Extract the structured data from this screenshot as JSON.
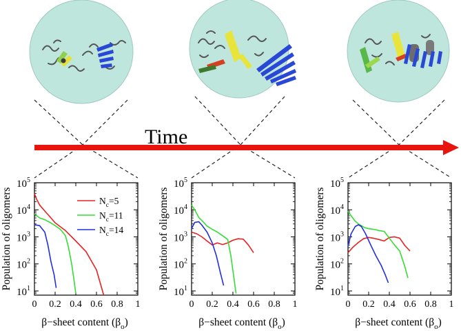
{
  "time_label": "Time",
  "colors": {
    "bubble_fill": "#bfe6dc",
    "bubble_stroke": "#9cc9bf",
    "arrow": "#e8150e",
    "series_red": "#e82020",
    "series_green": "#33dd33",
    "series_blue": "#1f2fe0"
  },
  "snapshots": [
    {
      "icons": [
        "coil-strands",
        "green-yellow-sheet",
        "blue-beta-sheet"
      ]
    },
    {
      "icons": [
        "coil-strands",
        "yellow-red-green-sheet",
        "large-blue-beta-sheet"
      ]
    },
    {
      "icons": [
        "coil-strands",
        "green-yellow-sheet",
        "grey-barrel",
        "blue-beta-sheet"
      ]
    }
  ],
  "chart_data": [
    {
      "type": "line",
      "ylabel": "Population of oligomers",
      "xlabel_pre": "β−sheet content (β",
      "xlabel_sub": "o",
      "xlabel_post": ")",
      "xlim": [
        0,
        1
      ],
      "ylim": [
        7,
        100000
      ],
      "yscale": "log",
      "x_ticks": [
        "0",
        "0.2",
        "0.4",
        "0.6",
        "0.8",
        "1"
      ],
      "x_tick_values": [
        0,
        0.2,
        0.4,
        0.6,
        0.8,
        1
      ],
      "y_tick_exponents": [
        "5",
        "4",
        "3",
        "2",
        "1"
      ],
      "y_tick_values": [
        100000,
        10000,
        1000,
        100,
        10
      ],
      "legend_placement": "top-right",
      "series": [
        {
          "name_main": "N",
          "name_sub": "c",
          "name_tail": "=5",
          "color": "#e82020",
          "points": [
            [
              0,
              40000
            ],
            [
              0.02,
              25000
            ],
            [
              0.05,
              15000
            ],
            [
              0.1,
              9000
            ],
            [
              0.15,
              5500
            ],
            [
              0.2,
              3300
            ],
            [
              0.3,
              1700
            ],
            [
              0.4,
              700
            ],
            [
              0.5,
              280
            ],
            [
              0.6,
              60
            ],
            [
              0.67,
              7
            ]
          ]
        },
        {
          "name_main": "N",
          "name_sub": "c",
          "name_tail": "=11",
          "color": "#33dd33",
          "points": [
            [
              0,
              7000
            ],
            [
              0.05,
              5000
            ],
            [
              0.1,
              4300
            ],
            [
              0.15,
              3400
            ],
            [
              0.2,
              2600
            ],
            [
              0.25,
              1900
            ],
            [
              0.3,
              1100
            ],
            [
              0.33,
              400
            ],
            [
              0.36,
              100
            ],
            [
              0.38,
              30
            ],
            [
              0.4,
              8
            ]
          ]
        },
        {
          "name_main": "N",
          "name_sub": "c",
          "name_tail": "=14",
          "color": "#1f2fe0",
          "points": [
            [
              0,
              2800
            ],
            [
              0.05,
              2600
            ],
            [
              0.1,
              1500
            ],
            [
              0.13,
              500
            ],
            [
              0.16,
              120
            ],
            [
              0.19,
              40
            ],
            [
              0.21,
              13
            ]
          ]
        }
      ]
    },
    {
      "type": "line",
      "ylabel": "Population of oligomers",
      "xlabel_pre": "β−sheet content (β",
      "xlabel_sub": "o",
      "xlabel_post": ")",
      "xlim": [
        0,
        1
      ],
      "ylim": [
        7,
        100000
      ],
      "yscale": "log",
      "x_ticks": [
        "0",
        "0.2",
        "0.4",
        "0.6",
        "0.8",
        "1"
      ],
      "x_tick_values": [
        0,
        0.2,
        0.4,
        0.6,
        0.8,
        1
      ],
      "y_tick_exponents": [
        "5",
        "4",
        "3",
        "2",
        "1"
      ],
      "y_tick_values": [
        100000,
        10000,
        1000,
        100,
        10
      ],
      "series": [
        {
          "color": "#e82020",
          "points": [
            [
              0,
              1500
            ],
            [
              0.05,
              1300
            ],
            [
              0.1,
              1000
            ],
            [
              0.15,
              700
            ],
            [
              0.2,
              500
            ],
            [
              0.25,
              600
            ],
            [
              0.3,
              520
            ],
            [
              0.35,
              600
            ],
            [
              0.4,
              750
            ],
            [
              0.45,
              850
            ],
            [
              0.5,
              820
            ],
            [
              0.55,
              500
            ],
            [
              0.6,
              260
            ]
          ]
        },
        {
          "color": "#33dd33",
          "points": [
            [
              0,
              15000
            ],
            [
              0.03,
              10000
            ],
            [
              0.07,
              5200
            ],
            [
              0.1,
              4000
            ],
            [
              0.15,
              2500
            ],
            [
              0.2,
              1900
            ],
            [
              0.25,
              1500
            ],
            [
              0.3,
              1100
            ],
            [
              0.35,
              800
            ],
            [
              0.38,
              200
            ],
            [
              0.41,
              30
            ],
            [
              0.43,
              8
            ]
          ]
        },
        {
          "color": "#1f2fe0",
          "points": [
            [
              0,
              2000
            ],
            [
              0.03,
              3400
            ],
            [
              0.07,
              3600
            ],
            [
              0.1,
              2700
            ],
            [
              0.15,
              1500
            ],
            [
              0.2,
              600
            ],
            [
              0.24,
              200
            ],
            [
              0.28,
              45
            ],
            [
              0.31,
              16
            ]
          ]
        }
      ]
    },
    {
      "type": "line",
      "ylabel": "Population of oligomers",
      "xlabel_pre": "β−sheet content (β",
      "xlabel_sub": "o",
      "xlabel_post": ")",
      "xlim": [
        0,
        1
      ],
      "ylim": [
        7,
        100000
      ],
      "yscale": "log",
      "x_ticks": [
        "0",
        "0.2",
        "0.4",
        "0.6",
        "0.8",
        "1"
      ],
      "x_tick_values": [
        0,
        0.2,
        0.4,
        0.6,
        0.8,
        1
      ],
      "y_tick_exponents": [
        "5",
        "4",
        "3",
        "2",
        "1"
      ],
      "y_tick_values": [
        100000,
        10000,
        1000,
        100,
        10
      ],
      "series": [
        {
          "color": "#e82020",
          "points": [
            [
              0,
              260
            ],
            [
              0.05,
              420
            ],
            [
              0.1,
              620
            ],
            [
              0.15,
              850
            ],
            [
              0.2,
              950
            ],
            [
              0.25,
              880
            ],
            [
              0.3,
              800
            ],
            [
              0.35,
              700
            ],
            [
              0.4,
              950
            ],
            [
              0.45,
              1000
            ],
            [
              0.5,
              900
            ],
            [
              0.55,
              480
            ],
            [
              0.6,
              300
            ]
          ]
        },
        {
          "color": "#33dd33",
          "points": [
            [
              0,
              9000
            ],
            [
              0.03,
              6000
            ],
            [
              0.07,
              3800
            ],
            [
              0.1,
              3000
            ],
            [
              0.13,
              2600
            ],
            [
              0.16,
              2200
            ],
            [
              0.2,
              2000
            ],
            [
              0.25,
              1900
            ],
            [
              0.3,
              1700
            ],
            [
              0.35,
              1600
            ],
            [
              0.4,
              900
            ],
            [
              0.45,
              500
            ],
            [
              0.5,
              300
            ],
            [
              0.55,
              80
            ],
            [
              0.58,
              30
            ]
          ]
        },
        {
          "color": "#1f2fe0",
          "points": [
            [
              0,
              450
            ],
            [
              0.03,
              1300
            ],
            [
              0.07,
              2400
            ],
            [
              0.1,
              2800
            ],
            [
              0.13,
              2400
            ],
            [
              0.17,
              1300
            ],
            [
              0.22,
              500
            ],
            [
              0.27,
              200
            ],
            [
              0.32,
              90
            ],
            [
              0.36,
              40
            ],
            [
              0.39,
              20
            ]
          ]
        }
      ]
    }
  ]
}
